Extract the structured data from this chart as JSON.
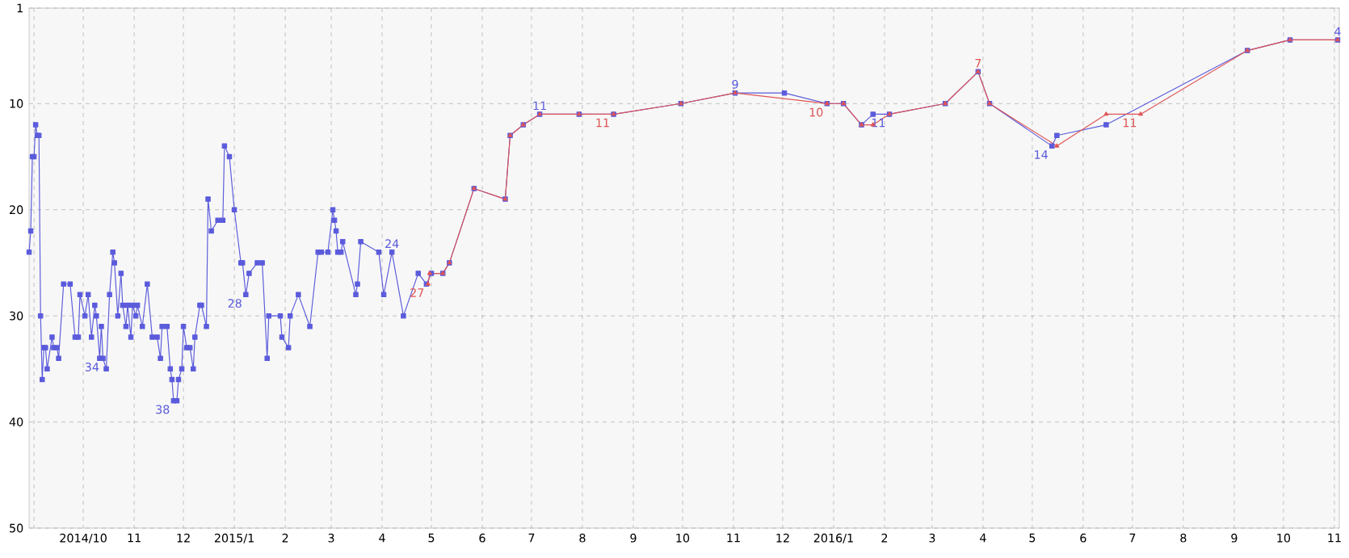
{
  "chart_data": {
    "type": "line",
    "xlim": [
      "2014-08-29",
      "2016-11-04"
    ],
    "ylim": [
      50,
      1
    ],
    "yticks": [
      1,
      10,
      20,
      30,
      40,
      50
    ],
    "xticks": [
      {
        "value": "2014-09-01",
        "label": null
      },
      {
        "value": "2014-10-01",
        "label": "2014/10"
      },
      {
        "value": "2014-11-01",
        "label": "11"
      },
      {
        "value": "2014-12-01",
        "label": "12"
      },
      {
        "value": "2015-01-01",
        "label": "2015/1"
      },
      {
        "value": "2015-02-01",
        "label": "2"
      },
      {
        "value": "2015-03-01",
        "label": "3"
      },
      {
        "value": "2015-04-01",
        "label": "4"
      },
      {
        "value": "2015-05-01",
        "label": "5"
      },
      {
        "value": "2015-06-01",
        "label": "6"
      },
      {
        "value": "2015-07-01",
        "label": "7"
      },
      {
        "value": "2015-08-01",
        "label": "8"
      },
      {
        "value": "2015-09-01",
        "label": "9"
      },
      {
        "value": "2015-10-01",
        "label": "10"
      },
      {
        "value": "2015-11-01",
        "label": "11"
      },
      {
        "value": "2015-12-01",
        "label": "12"
      },
      {
        "value": "2016-01-01",
        "label": "2016/1"
      },
      {
        "value": "2016-02-01",
        "label": "2"
      },
      {
        "value": "2016-03-01",
        "label": "3"
      },
      {
        "value": "2016-04-01",
        "label": "4"
      },
      {
        "value": "2016-05-01",
        "label": "5"
      },
      {
        "value": "2016-06-01",
        "label": "6"
      },
      {
        "value": "2016-07-01",
        "label": "7"
      },
      {
        "value": "2016-08-01",
        "label": "8"
      },
      {
        "value": "2016-09-01",
        "label": "9"
      },
      {
        "value": "2016-10-01",
        "label": "10"
      },
      {
        "value": "2016-11-01",
        "label": "11"
      }
    ],
    "grid": true,
    "line_style": "solid",
    "series": [
      {
        "color": "#5b5bdc",
        "marker": "square",
        "x": [
          "2014-08-29",
          "2014-08-30",
          "2014-08-31",
          "2014-09-01",
          "2014-09-02",
          "2014-09-03",
          "2014-09-04",
          "2014-09-05",
          "2014-09-06",
          "2014-09-07",
          "2014-09-08",
          "2014-09-09",
          "2014-09-12",
          "2014-09-13",
          "2014-09-15",
          "2014-09-16",
          "2014-09-19",
          "2014-09-23",
          "2014-09-26",
          "2014-09-28",
          "2014-09-29",
          "2014-10-02",
          "2014-10-04",
          "2014-10-06",
          "2014-10-08",
          "2014-10-09",
          "2014-10-11",
          "2014-10-12",
          "2014-10-13",
          "2014-10-15",
          "2014-10-17",
          "2014-10-19",
          "2014-10-20",
          "2014-10-22",
          "2014-10-24",
          "2014-10-25",
          "2014-10-27",
          "2014-10-28",
          "2014-10-30",
          "2014-10-31",
          "2014-11-02",
          "2014-11-03",
          "2014-11-06",
          "2014-11-09",
          "2014-11-12",
          "2014-11-15",
          "2014-11-17",
          "2014-11-18",
          "2014-11-21",
          "2014-11-23",
          "2014-11-24",
          "2014-11-25",
          "2014-11-27",
          "2014-11-28",
          "2014-11-30",
          "2014-12-01",
          "2014-12-03",
          "2014-12-05",
          "2014-12-07",
          "2014-12-08",
          "2014-12-11",
          "2014-12-12",
          "2014-12-15",
          "2014-12-16",
          "2014-12-18",
          "2014-12-22",
          "2014-12-25",
          "2014-12-26",
          "2014-12-29",
          "2015-01-01",
          "2015-01-05",
          "2015-01-06",
          "2015-01-08",
          "2015-01-10",
          "2015-01-15",
          "2015-01-18",
          "2015-01-21",
          "2015-01-22",
          "2015-01-29",
          "2015-01-30",
          "2015-02-03",
          "2015-02-04",
          "2015-02-09",
          "2015-02-16",
          "2015-02-21",
          "2015-02-23",
          "2015-02-27",
          "2015-03-02",
          "2015-03-03",
          "2015-03-04",
          "2015-03-05",
          "2015-03-07",
          "2015-03-08",
          "2015-03-16",
          "2015-03-17",
          "2015-03-19",
          "2015-03-30",
          "2015-04-02",
          "2015-04-07",
          "2015-04-14",
          "2015-04-23",
          "2015-04-28",
          "2015-05-01",
          "2015-05-08",
          "2015-05-12",
          "2015-05-27",
          "2015-06-15",
          "2015-06-18",
          "2015-06-26",
          "2015-07-06",
          "2015-07-30",
          "2015-08-20",
          "2015-09-30",
          "2015-11-02",
          "2015-12-02",
          "2015-12-28",
          "2016-01-07",
          "2016-01-18",
          "2016-01-25",
          "2016-02-04",
          "2016-03-09",
          "2016-03-29",
          "2016-04-05",
          "2016-05-13",
          "2016-05-16",
          "2016-06-15",
          "2016-09-09",
          "2016-10-05",
          "2016-11-03"
        ],
        "values": [
          24,
          22,
          15,
          15,
          12,
          13,
          13,
          30,
          36,
          33,
          33,
          35,
          32,
          33,
          33,
          34,
          27,
          27,
          32,
          32,
          28,
          30,
          28,
          32,
          29,
          30,
          34,
          31,
          34,
          35,
          28,
          24,
          25,
          30,
          26,
          29,
          31,
          29,
          32,
          29,
          30,
          29,
          31,
          27,
          32,
          32,
          34,
          31,
          31,
          35,
          36,
          38,
          38,
          36,
          35,
          31,
          33,
          33,
          35,
          32,
          29,
          29,
          31,
          19,
          22,
          21,
          21,
          14,
          15,
          20,
          25,
          25,
          28,
          26,
          25,
          25,
          34,
          30,
          30,
          32,
          33,
          30,
          28,
          31,
          24,
          24,
          24,
          20,
          21,
          22,
          24,
          24,
          23,
          28,
          27,
          23,
          24,
          28,
          24,
          30,
          26,
          27,
          26,
          26,
          25,
          18,
          19,
          13,
          12,
          11,
          11,
          11,
          10,
          9,
          9,
          10,
          10,
          12,
          11,
          11,
          10,
          7,
          10,
          14,
          13,
          12,
          5,
          4,
          4
        ],
        "value_labels": [
          null,
          null,
          null,
          null,
          null,
          null,
          null,
          null,
          null,
          null,
          null,
          null,
          null,
          null,
          null,
          null,
          null,
          null,
          null,
          null,
          null,
          null,
          null,
          null,
          null,
          null,
          null,
          null,
          "34",
          null,
          null,
          null,
          null,
          null,
          null,
          null,
          null,
          null,
          null,
          null,
          null,
          null,
          null,
          null,
          null,
          null,
          null,
          null,
          null,
          null,
          null,
          "38",
          null,
          null,
          null,
          null,
          null,
          null,
          null,
          null,
          null,
          null,
          null,
          null,
          null,
          null,
          null,
          null,
          null,
          null,
          null,
          null,
          "28",
          null,
          null,
          null,
          null,
          null,
          null,
          null,
          null,
          null,
          null,
          null,
          null,
          null,
          null,
          null,
          null,
          null,
          null,
          null,
          null,
          null,
          null,
          null,
          null,
          null,
          "24",
          null,
          null,
          null,
          null,
          null,
          null,
          null,
          null,
          null,
          null,
          "11",
          null,
          null,
          null,
          "9",
          null,
          null,
          null,
          null,
          null,
          "11",
          null,
          null,
          null,
          "14",
          null,
          null,
          null,
          null,
          "4"
        ]
      },
      {
        "color": "#e05555",
        "marker": "triangle",
        "x": [
          "2015-04-29",
          "2015-04-30",
          "2015-05-08",
          "2015-05-12",
          "2015-05-27",
          "2015-06-15",
          "2015-06-18",
          "2015-06-26",
          "2015-07-06",
          "2015-07-30",
          "2015-08-20",
          "2015-09-30",
          "2015-11-02",
          "2015-12-28",
          "2016-01-07",
          "2016-01-18",
          "2016-01-25",
          "2016-02-04",
          "2016-03-09",
          "2016-03-29",
          "2016-04-05",
          "2016-05-16",
          "2016-06-15",
          "2016-07-06",
          "2016-09-09",
          "2016-10-05",
          "2016-11-03"
        ],
        "values": [
          27,
          26,
          26,
          25,
          18,
          19,
          13,
          12,
          11,
          11,
          11,
          10,
          9,
          10,
          10,
          12,
          12,
          11,
          10,
          7,
          10,
          14,
          11,
          11,
          5,
          4,
          4
        ],
        "value_labels": [
          "27",
          null,
          null,
          null,
          null,
          null,
          null,
          null,
          null,
          null,
          "11",
          null,
          null,
          "10",
          null,
          null,
          null,
          null,
          null,
          "7",
          null,
          null,
          null,
          "11",
          null,
          null,
          null
        ]
      }
    ]
  }
}
